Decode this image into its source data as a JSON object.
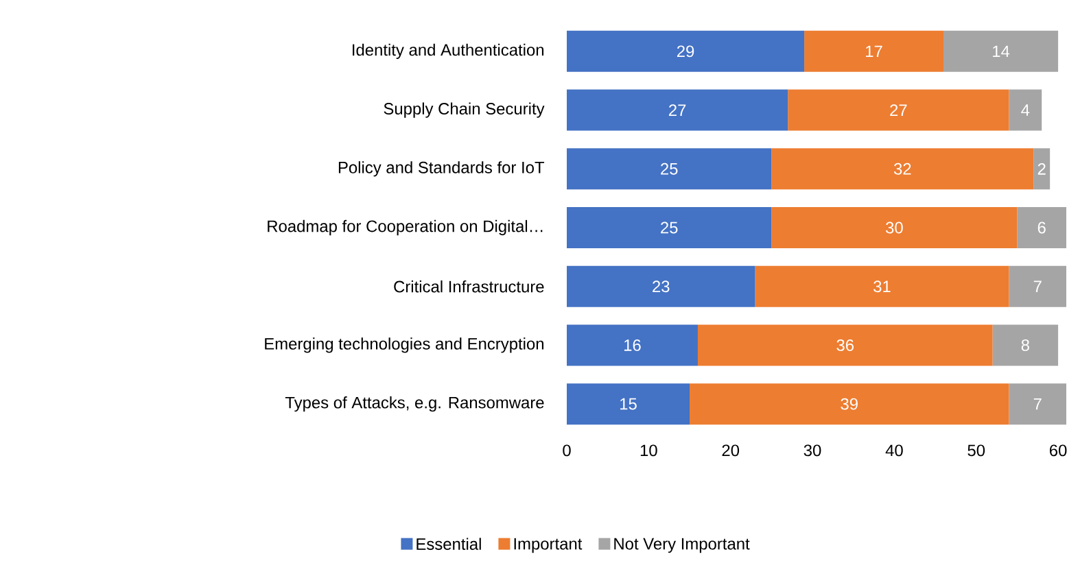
{
  "chart_data": {
    "type": "bar",
    "orientation": "horizontal",
    "stacked": true,
    "data_labels": true,
    "legend": "bottom",
    "grid": false,
    "categories": [
      "Identity and Authentication",
      "Supply Chain Security",
      "Policy and Standards for IoT",
      "Roadmap for Cooperation on Digital…",
      "Critical Infrastructure",
      "Emerging technologies and Encryption",
      "Types of Attacks, e.g. Ransomware"
    ],
    "series": [
      {
        "name": "Essential",
        "color": "#4472c4",
        "values": [
          29,
          27,
          25,
          25,
          23,
          16,
          15
        ]
      },
      {
        "name": "Important",
        "color": "#ed7d31",
        "values": [
          17,
          27,
          32,
          30,
          31,
          36,
          39
        ]
      },
      {
        "name": "Not Very Important",
        "color": "#a5a5a5",
        "values": [
          14,
          4,
          2,
          6,
          7,
          8,
          7
        ]
      }
    ],
    "xlim": [
      0,
      61
    ],
    "xticks": [
      0,
      10,
      20,
      30,
      40,
      50,
      60
    ]
  }
}
